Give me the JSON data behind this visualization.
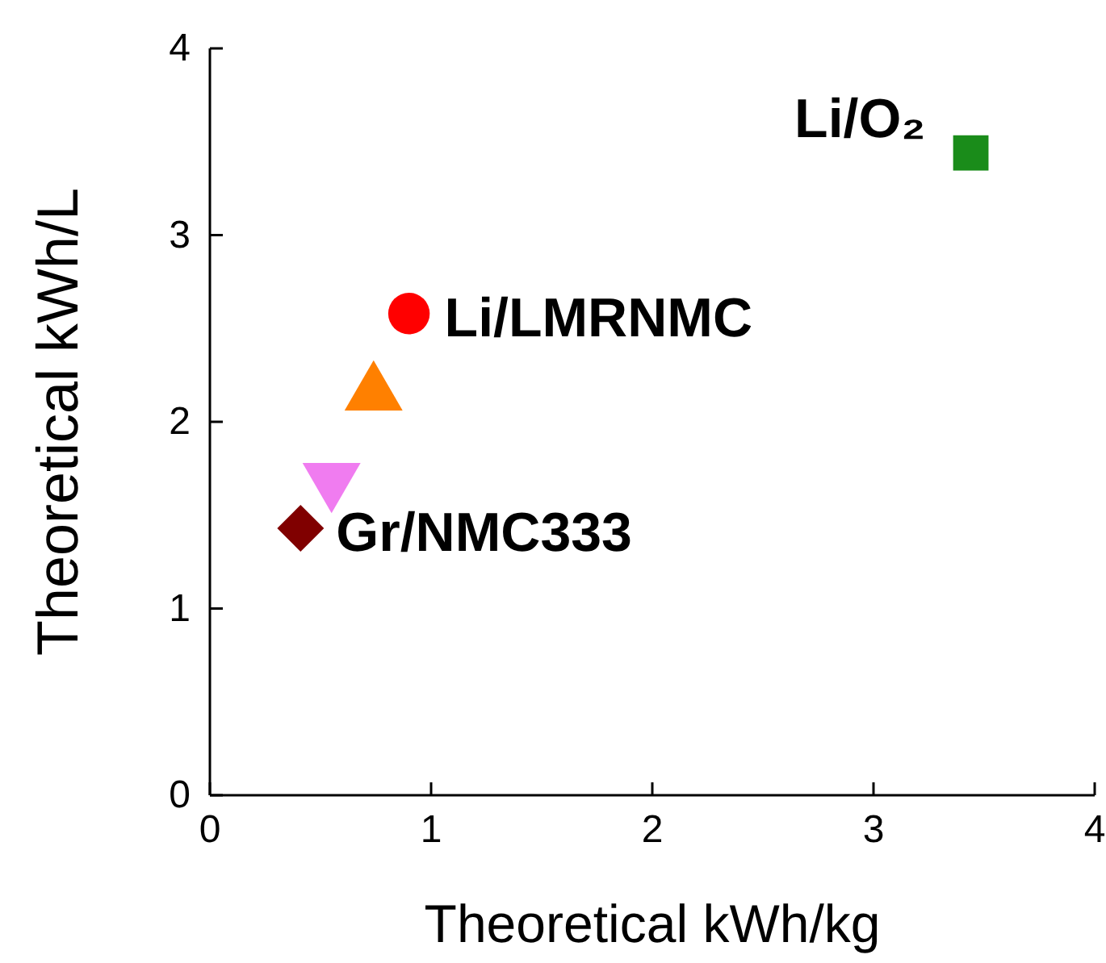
{
  "chart_data": {
    "type": "scatter",
    "xlabel": "Theoretical kWh/kg",
    "ylabel": "Theoretical kWh/L",
    "xlim": [
      0,
      4
    ],
    "ylim": [
      0,
      4
    ],
    "xticks": [
      0,
      1,
      2,
      3,
      4
    ],
    "yticks": [
      0,
      1,
      2,
      3,
      4
    ],
    "grid": false,
    "series": [
      {
        "name": "Li/O₂",
        "color": "#1a8c1a",
        "marker": "square",
        "x": [
          3.44
        ],
        "values": [
          3.44
        ]
      },
      {
        "name": "Li/LMRNMC",
        "color": "#ff0000",
        "marker": "circle",
        "x": [
          0.9
        ],
        "values": [
          2.58
        ]
      },
      {
        "color": "#ff8000",
        "marker": "triangle",
        "x": [
          0.74
        ],
        "values": [
          2.15
        ]
      },
      {
        "color": "#f07cf0",
        "marker": "triangle-down",
        "x": [
          0.55
        ],
        "values": [
          1.69
        ]
      },
      {
        "name": "Gr/NMC333",
        "color": "#800000",
        "marker": "diamond",
        "x": [
          0.41
        ],
        "values": [
          1.43
        ]
      }
    ]
  }
}
